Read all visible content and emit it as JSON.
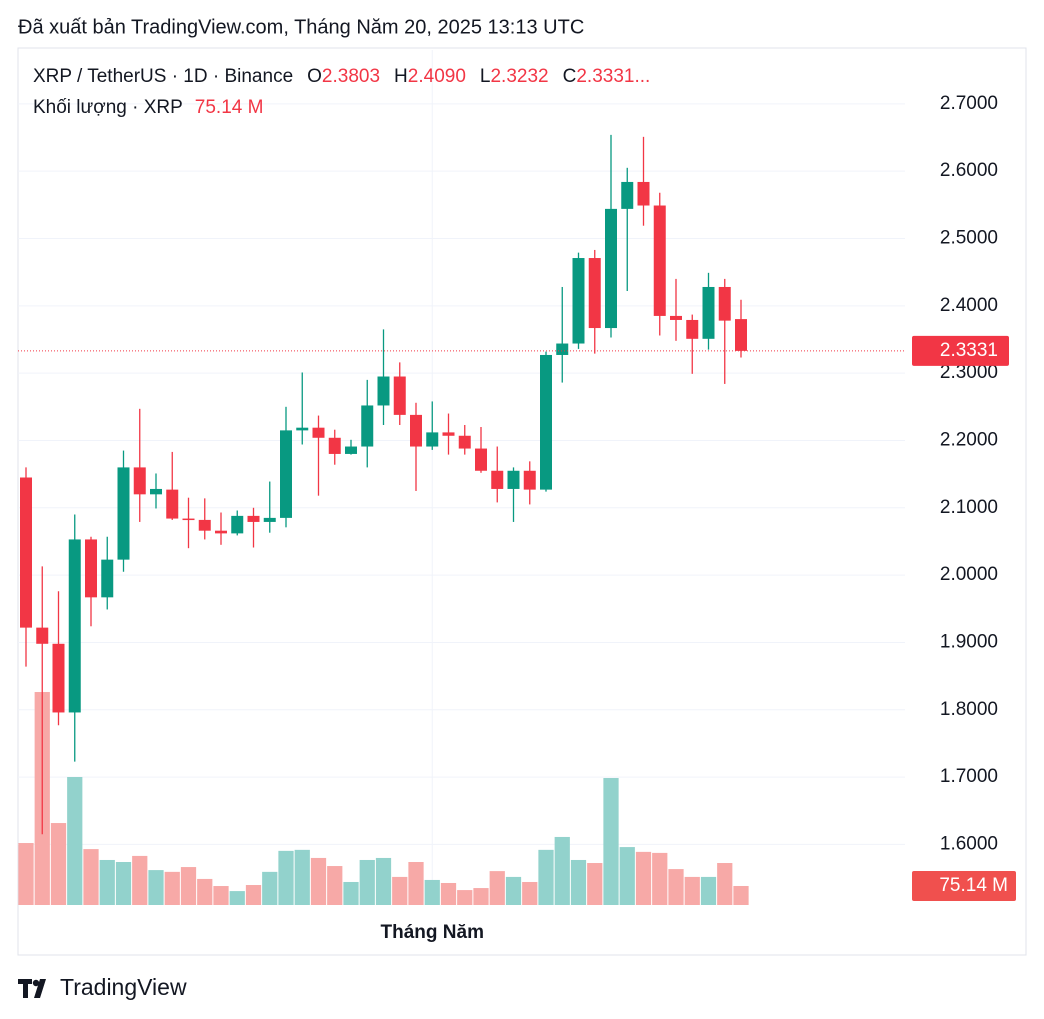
{
  "caption": "Đã xuất bản TradingView.com, Tháng Năm 20, 2025 13:13 UTC",
  "footer": {
    "brand": "TradingView"
  },
  "chart_data": {
    "type": "candlestick",
    "header": {
      "symbol": "XRP / TetherUS · 1D · Binance",
      "ohlc": [
        {
          "key": "O",
          "label": "2.3803"
        },
        {
          "key": "H",
          "label": "2.4090"
        },
        {
          "key": "L",
          "label": "2.3232"
        },
        {
          "key": "C",
          "label": "2.3331..."
        }
      ]
    },
    "categories": [
      null,
      null,
      null,
      null,
      null,
      null,
      null,
      null,
      null,
      null,
      null,
      null,
      null,
      null,
      null,
      null,
      null,
      null,
      null,
      null,
      null,
      null,
      null,
      null,
      null,
      "Tháng Năm",
      null,
      null,
      null,
      null,
      null,
      null,
      null,
      null,
      null,
      null,
      null,
      null,
      null,
      null,
      null,
      null,
      null,
      null,
      null
    ],
    "series": {
      "open": [
        2.145,
        1.922,
        1.898,
        1.796,
        2.053,
        1.967,
        2.023,
        2.16,
        2.12,
        2.127,
        2.084,
        2.082,
        2.066,
        2.062,
        2.088,
        2.079,
        2.085,
        2.215,
        2.219,
        2.204,
        2.18,
        2.191,
        2.252,
        2.295,
        2.238,
        2.191,
        2.212,
        2.207,
        2.188,
        2.155,
        2.128,
        2.155,
        2.127,
        2.327,
        2.344,
        2.471,
        2.367,
        2.544,
        2.584,
        2.549,
        2.385,
        2.379,
        2.351,
        2.428,
        2.3803
      ],
      "high": [
        2.16,
        2.013,
        1.976,
        2.09,
        2.057,
        2.057,
        2.185,
        2.247,
        2.151,
        2.183,
        2.115,
        2.114,
        2.093,
        2.096,
        2.1,
        2.139,
        2.25,
        2.301,
        2.237,
        2.216,
        2.201,
        2.29,
        2.365,
        2.316,
        2.256,
        2.258,
        2.24,
        2.223,
        2.22,
        2.191,
        2.16,
        2.169,
        2.332,
        2.428,
        2.479,
        2.483,
        2.654,
        2.605,
        2.651,
        2.568,
        2.44,
        2.387,
        2.449,
        2.44,
        2.409
      ],
      "low": [
        1.864,
        1.615,
        1.777,
        1.723,
        1.924,
        1.949,
        2.005,
        2.079,
        2.099,
        2.082,
        2.04,
        2.053,
        2.045,
        2.059,
        2.041,
        2.063,
        2.071,
        2.194,
        2.118,
        2.164,
        2.179,
        2.16,
        2.223,
        2.223,
        2.125,
        2.186,
        2.179,
        2.179,
        2.152,
        2.108,
        2.079,
        2.105,
        2.124,
        2.286,
        2.336,
        2.329,
        2.353,
        2.422,
        2.519,
        2.356,
        2.348,
        2.299,
        2.335,
        2.284,
        2.3232
      ],
      "close": [
        1.922,
        1.898,
        1.796,
        2.053,
        1.967,
        2.023,
        2.16,
        2.12,
        2.128,
        2.084,
        2.082,
        2.066,
        2.062,
        2.088,
        2.079,
        2.085,
        2.215,
        2.219,
        2.204,
        2.18,
        2.191,
        2.252,
        2.295,
        2.238,
        2.191,
        2.212,
        2.207,
        2.188,
        2.155,
        2.128,
        2.155,
        2.127,
        2.327,
        2.344,
        2.471,
        2.367,
        2.544,
        2.584,
        2.549,
        2.385,
        2.379,
        2.351,
        2.428,
        2.378,
        2.3331
      ]
    },
    "up_color": "#089981",
    "down_color": "#f23645",
    "volume": {
      "name": "Khối lượng · XRP",
      "values": [
        245,
        842,
        324,
        506,
        221,
        178,
        170,
        194,
        138,
        131,
        150,
        103,
        75,
        55,
        79,
        131,
        214,
        218,
        186,
        154,
        91,
        178,
        186,
        111,
        170,
        99,
        87,
        59,
        67,
        134,
        111,
        91,
        218,
        269,
        178,
        166,
        502,
        229,
        210,
        206,
        142,
        111,
        111,
        166,
        75.14
      ],
      "value_labels": [
        null,
        null,
        null,
        null,
        null,
        null,
        null,
        null,
        null,
        null,
        null,
        null,
        null,
        null,
        null,
        null,
        null,
        null,
        null,
        null,
        null,
        null,
        null,
        null,
        null,
        null,
        null,
        null,
        null,
        null,
        null,
        null,
        null,
        null,
        null,
        null,
        null,
        null,
        null,
        null,
        null,
        null,
        null,
        null,
        "75.14 M"
      ],
      "ylim": [
        0,
        3380
      ],
      "up_color": "#92d2cc",
      "down_color": "#f7a9a7"
    },
    "ylim": [
      1.51,
      2.78
    ],
    "yticks": [
      {
        "value": 1.6,
        "label": "1.6000"
      },
      {
        "value": 1.7,
        "label": "1.7000"
      },
      {
        "value": 1.8,
        "label": "1.8000"
      },
      {
        "value": 1.9,
        "label": "1.9000"
      },
      {
        "value": 2.0,
        "label": "2.0000"
      },
      {
        "value": 2.1,
        "label": "2.1000"
      },
      {
        "value": 2.2,
        "label": "2.2000"
      },
      {
        "value": 2.3,
        "label": "2.3000"
      },
      {
        "value": 2.4,
        "label": "2.4000"
      },
      {
        "value": 2.5,
        "label": "2.5000"
      },
      {
        "value": 2.6,
        "label": "2.6000"
      },
      {
        "value": 2.7,
        "label": "2.7000"
      }
    ],
    "grid": true
  }
}
